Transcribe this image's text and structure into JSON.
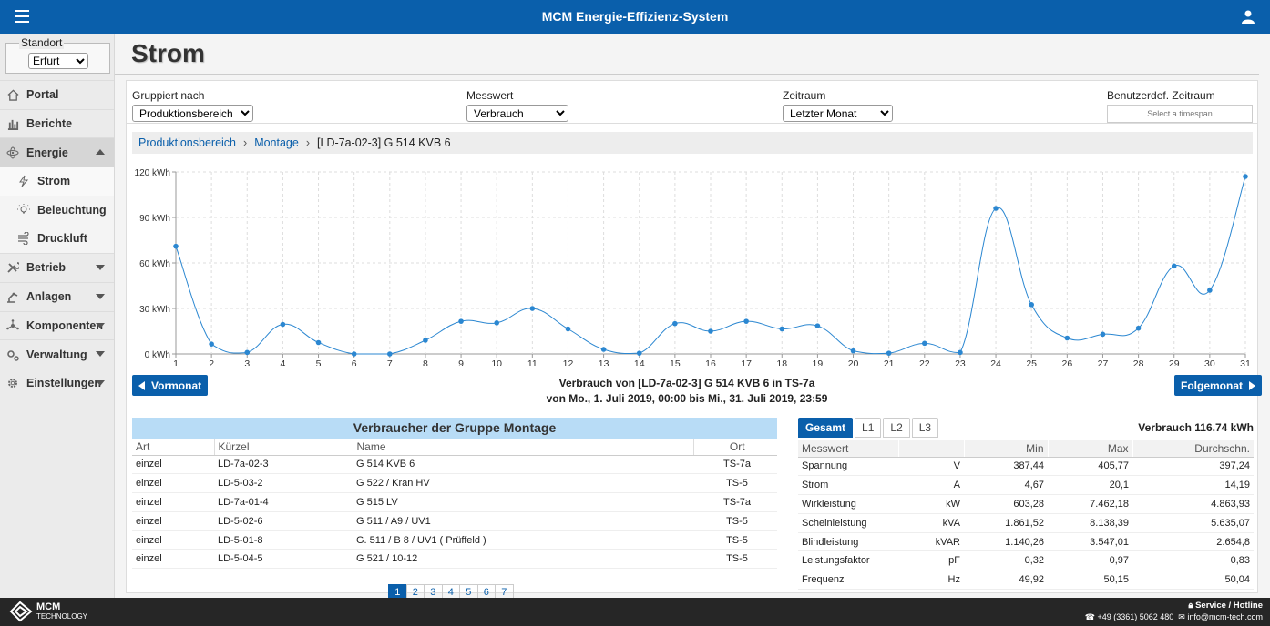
{
  "app": {
    "title": "MCM Energie-Effizienz-System"
  },
  "sidebar": {
    "standort_label": "Standort",
    "standort_value": "Erfurt",
    "items": [
      {
        "label": "Portal"
      },
      {
        "label": "Berichte"
      },
      {
        "label": "Energie"
      },
      {
        "label": "Strom"
      },
      {
        "label": "Beleuchtung"
      },
      {
        "label": "Druckluft"
      },
      {
        "label": "Betrieb"
      },
      {
        "label": "Anlagen"
      },
      {
        "label": "Komponenten"
      },
      {
        "label": "Verwaltung"
      },
      {
        "label": "Einstellungen"
      }
    ]
  },
  "page": {
    "title": "Strom"
  },
  "filters": {
    "group_label": "Gruppiert nach",
    "group_value": "Produktionsbereich",
    "measure_label": "Messwert",
    "measure_value": "Verbrauch",
    "range_label": "Zeitraum",
    "range_value": "Letzter Monat",
    "custom_label": "Benutzerdef. Zeitraum",
    "custom_placeholder": "Select a timespan"
  },
  "breadcrumb": {
    "level1": "Produktionsbereich",
    "level2": "Montage",
    "current": "[LD-7a-02-3] G 514 KVB 6"
  },
  "chart_data": {
    "type": "line",
    "x": [
      1,
      2,
      3,
      4,
      5,
      6,
      7,
      8,
      9,
      10,
      11,
      12,
      13,
      14,
      15,
      16,
      17,
      18,
      19,
      20,
      21,
      22,
      23,
      24,
      25,
      26,
      27,
      28,
      29,
      30,
      31
    ],
    "values": [
      71,
      6.5,
      1,
      19.5,
      7.5,
      0,
      0,
      9,
      21.5,
      20.5,
      30,
      16.5,
      3,
      0.5,
      20,
      15,
      21.5,
      16.5,
      18.5,
      2,
      0.5,
      7,
      1,
      96,
      32.5,
      10.5,
      13,
      17,
      58,
      42,
      117
    ],
    "y_ticks": [
      "0 kWh",
      "30 kWh",
      "60 kWh",
      "90 kWh",
      "120 kWh"
    ],
    "ylim": [
      0,
      120
    ],
    "grid": true,
    "color": "#2b87d1"
  },
  "nav": {
    "prev": "Vormonat",
    "next": "Folgemonat"
  },
  "caption": {
    "line1": "Verbrauch von [LD-7a-02-3] G 514 KVB 6 in TS-7a",
    "line2": "von Mo., 1. Juli 2019, 00:00 bis Mi., 31. Juli 2019, 23:59"
  },
  "consumers": {
    "title": "Verbraucher der Gruppe Montage",
    "columns": [
      "Art",
      "Kürzel",
      "Name",
      "Ort"
    ],
    "rows": [
      [
        "einzel",
        "LD-7a-02-3",
        "G 514 KVB 6",
        "TS-7a"
      ],
      [
        "einzel",
        "LD-5-03-2",
        "G 522 / Kran HV",
        "TS-5"
      ],
      [
        "einzel",
        "LD-7a-01-4",
        "G 515 LV",
        "TS-7a"
      ],
      [
        "einzel",
        "LD-5-02-6",
        "G 511 / A9 / UV1",
        "TS-5"
      ],
      [
        "einzel",
        "LD-5-01-8",
        "G. 511 / B 8 / UV1 ( Prüffeld )",
        "TS-5"
      ],
      [
        "einzel",
        "LD-5-04-5",
        "G 521 / 10-12",
        "TS-5"
      ]
    ],
    "pages": [
      "1",
      "2",
      "3",
      "4",
      "5",
      "6",
      "7"
    ]
  },
  "stats": {
    "tabs": [
      "Gesamt",
      "L1",
      "L2",
      "L3"
    ],
    "total": "Verbrauch 116.74 kWh",
    "columns": [
      "Messwert",
      "",
      "Min",
      "Max",
      "Durchschn."
    ],
    "rows": [
      [
        "Spannung",
        "V",
        "387,44",
        "405,77",
        "397,24"
      ],
      [
        "Strom",
        "A",
        "4,67",
        "20,1",
        "14,19"
      ],
      [
        "Wirkleistung",
        "kW",
        "603,28",
        "7.462,18",
        "4.863,93"
      ],
      [
        "Scheinleistung",
        "kVA",
        "1.861,52",
        "8.138,39",
        "5.635,07"
      ],
      [
        "Blindleistung",
        "kVAR",
        "1.140,26",
        "3.547,01",
        "2.654,8"
      ],
      [
        "Leistungsfaktor",
        "pF",
        "0,32",
        "0,97",
        "0,83"
      ],
      [
        "Frequenz",
        "Hz",
        "49,92",
        "50,15",
        "50,04"
      ]
    ]
  },
  "footer": {
    "logo_line1": "MCM",
    "logo_line2": "TECHNOLOGY",
    "service": "Service / Hotline",
    "phone": "+49 (3361) 5062 480",
    "email": "info@mcm-tech.com"
  }
}
